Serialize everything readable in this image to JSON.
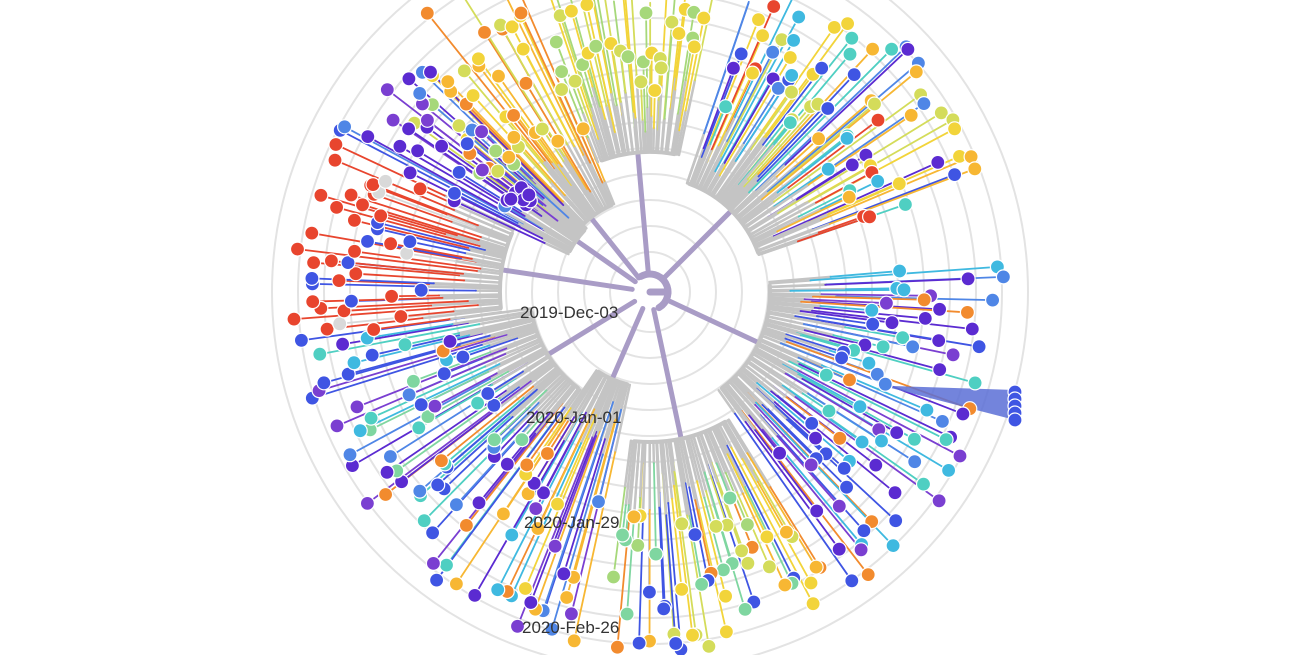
{
  "tree": {
    "date_axis_labels": [
      "2019-Dec-03",
      "2020-Jan-01",
      "2020-Jan-29",
      "2020-Feb-26"
    ]
  },
  "colors": {
    "background": "#ffffff",
    "grid_ring": "#e3e3e3",
    "root_branch": "#a99cc6",
    "internal_branch": "#c4c4c4",
    "palette": [
      "#5b2bd1",
      "#7a3fd1",
      "#3f55e3",
      "#4f86e6",
      "#3fb9e0",
      "#4fcfc2",
      "#7fd6a0",
      "#a6d87a",
      "#d4dc5a",
      "#f2d43a",
      "#f7b733",
      "#f28b2e",
      "#e8452e",
      "#d9d9d9"
    ]
  }
}
